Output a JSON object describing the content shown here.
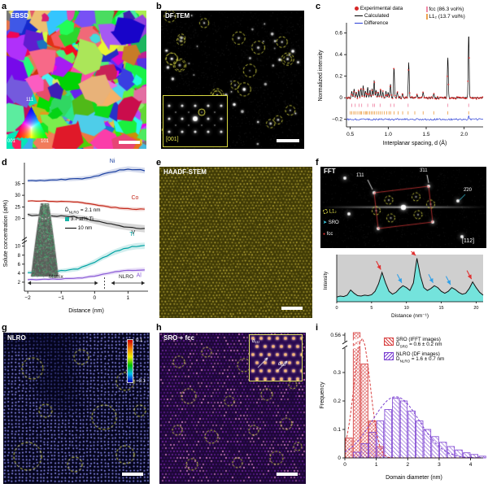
{
  "panels": {
    "a": {
      "letter": "a",
      "tag": "EBSD",
      "ipf_top": "111",
      "ipf_bl": "001",
      "ipf_br": "101"
    },
    "b": {
      "letter": "b",
      "tag": "DF-TEM",
      "zone": "[001]"
    },
    "c": {
      "letter": "c"
    },
    "d": {
      "letter": "d",
      "dbar_sym": "D̄",
      "dbar_sub": "NLRO",
      "dbar_val": " = 2.1 nm",
      "iso_label": "3.7 at% Ti",
      "scale_label": "10 nm",
      "matrix": "Matrix",
      "nlro": "NLRO"
    },
    "e": {
      "letter": "e",
      "tag": "HAADF-STEM"
    },
    "f": {
      "letter": "f",
      "tag": "FFT",
      "spot_111": "1̄11",
      "spot_311": "3̄11",
      "spot_220": "2̄20",
      "legend_l12": "L1₂",
      "legend_sro": "SRO",
      "legend_fcc": "fcc",
      "zone": "[112]"
    },
    "g": {
      "letter": "g",
      "tag": "NLRO",
      "cb_max": "0.1",
      "cb_min": "−0.1"
    },
    "h": {
      "letter": "h",
      "tag": "SRO + fcc",
      "d111_a": "d₁₁₁",
      "d111_b": "d₁₁₁"
    },
    "i": {
      "letter": "i"
    }
  },
  "chart_data": [
    {
      "id": "xrd",
      "type": "line+scatter",
      "title": "",
      "xlabel": "Interplanar spacing, d (Å)",
      "ylabel": "Normalized intensity",
      "xlim": [
        0.45,
        2.25
      ],
      "ylim": [
        -0.27,
        0.68
      ],
      "xticks": [
        0.5,
        1.0,
        1.5,
        2.0
      ],
      "yticks": [
        -0.2,
        0,
        0.2,
        0.4,
        0.6
      ],
      "legend": {
        "exp": "Experimental data",
        "calc": "Calculated",
        "diff": "Difference",
        "fcc": "fcc (86.3 vol%)",
        "l12": "L1₂ (13.7 vol%)"
      },
      "peaks": [
        [
          0.52,
          0.06
        ],
        [
          0.55,
          0.08
        ],
        [
          0.58,
          0.05
        ],
        [
          0.61,
          0.07
        ],
        [
          0.64,
          0.09
        ],
        [
          0.67,
          0.11
        ],
        [
          0.7,
          0.06
        ],
        [
          0.73,
          0.1
        ],
        [
          0.76,
          0.07
        ],
        [
          0.79,
          0.08
        ],
        [
          0.815,
          0.16
        ],
        [
          0.84,
          0.07
        ],
        [
          0.87,
          0.05
        ],
        [
          0.9,
          0.08
        ],
        [
          0.93,
          0.05
        ],
        [
          0.97,
          0.06
        ],
        [
          1.0,
          0.05
        ],
        [
          1.03,
          0.13
        ],
        [
          1.076,
          0.28
        ],
        [
          1.12,
          0.05
        ],
        [
          1.19,
          0.04
        ],
        [
          1.27,
          0.33
        ],
        [
          1.38,
          0.03
        ],
        [
          1.46,
          0.05
        ],
        [
          1.6,
          0.04
        ],
        [
          1.785,
          0.38
        ],
        [
          2.06,
          0.6
        ]
      ],
      "diff_baseline": -0.2,
      "fcc_ticks": [
        0.52,
        0.565,
        0.615,
        0.65,
        0.73,
        0.798,
        0.819,
        0.893,
        1.031,
        1.076,
        1.262,
        1.785,
        2.06
      ],
      "l12_ticks": [
        0.5,
        0.52,
        0.545,
        0.565,
        0.59,
        0.615,
        0.638,
        0.65,
        0.678,
        0.7,
        0.714,
        0.73,
        0.755,
        0.777,
        0.798,
        0.819,
        0.845,
        0.87,
        0.893,
        0.92,
        0.95,
        0.98,
        1.01,
        1.031,
        1.076,
        1.13,
        1.19,
        1.262,
        1.35,
        1.46,
        1.6,
        1.785,
        2.06
      ]
    },
    {
      "id": "proxigram",
      "type": "line",
      "xlabel": "Distance (nm)",
      "ylabel": "Solute concentration (at%)",
      "xlim": [
        -2.1,
        1.6
      ],
      "xticks": [
        -2,
        -1,
        0,
        1
      ],
      "yticks_upper": [
        20,
        25,
        30,
        35
      ],
      "yticks_lower": [
        2,
        4,
        6,
        8,
        10
      ],
      "x": [
        -2,
        -1.75,
        -1.5,
        -1.25,
        -1,
        -0.75,
        -0.5,
        -0.25,
        0,
        0.25,
        0.5,
        0.75,
        1,
        1.25,
        1.5
      ],
      "series": [
        {
          "name": "Ni",
          "color": "#1a3fa0",
          "band": 1.0,
          "values": [
            36.2,
            36.3,
            36.4,
            36.5,
            36.7,
            36.9,
            37.1,
            37.4,
            38.0,
            39.0,
            40.0,
            40.8,
            41.3,
            41.0,
            40.6
          ]
        },
        {
          "name": "Co",
          "color": "#c42a1c",
          "band": 0.7,
          "values": [
            27.6,
            27.5,
            27.5,
            27.4,
            27.3,
            27.2,
            27.0,
            26.6,
            26.0,
            25.4,
            24.9,
            24.5,
            24.2,
            24.0,
            24.1
          ]
        },
        {
          "name": "V",
          "color": "#222222",
          "band": 1.3,
          "values": [
            21.6,
            21.5,
            21.4,
            21.3,
            21.1,
            20.9,
            20.5,
            19.9,
            19.0,
            18.2,
            17.5,
            16.9,
            16.4,
            16.0,
            15.6
          ]
        },
        {
          "name": "Ti",
          "color": "#00a3a3",
          "band": 0.6,
          "values": [
            4.2,
            4.25,
            4.3,
            4.4,
            4.5,
            4.7,
            5.0,
            5.6,
            6.5,
            7.5,
            8.4,
            9.1,
            9.7,
            10.0,
            10.1
          ]
        },
        {
          "name": "Al",
          "color": "#8a5bd6",
          "band": 0.4,
          "values": [
            2.6,
            2.6,
            2.65,
            2.7,
            2.7,
            2.8,
            2.9,
            3.1,
            3.4,
            3.8,
            4.1,
            4.4,
            4.6,
            4.7,
            4.8
          ]
        }
      ]
    },
    {
      "id": "fft_profile",
      "type": "area",
      "xlabel": "Distance (nm⁻¹)",
      "ylabel": "Intensity",
      "xlim": [
        0,
        21
      ],
      "xticks": [
        0,
        5,
        10,
        15,
        20
      ],
      "x0": 0,
      "x_step": 0.5,
      "values": [
        0.1,
        0.12,
        0.11,
        0.14,
        0.25,
        0.18,
        0.13,
        0.12,
        0.14,
        0.13,
        0.15,
        0.22,
        0.38,
        0.62,
        0.4,
        0.22,
        0.16,
        0.2,
        0.28,
        0.34,
        0.3,
        0.24,
        0.4,
        0.92,
        0.55,
        0.3,
        0.24,
        0.28,
        0.34,
        0.3,
        0.22,
        0.18,
        0.22,
        0.3,
        0.26,
        0.2,
        0.16,
        0.18,
        0.28,
        0.42,
        0.3,
        0.2,
        0.14
      ],
      "arrows": [
        {
          "x": 6.5,
          "color": "#e03030"
        },
        {
          "x": 9.5,
          "color": "#30a0e8"
        },
        {
          "x": 11.5,
          "color": "#e03030"
        },
        {
          "x": 14,
          "color": "#30a0e8"
        },
        {
          "x": 16.5,
          "color": "#30a0e8"
        },
        {
          "x": 19.5,
          "color": "#e03030"
        }
      ]
    },
    {
      "id": "histogram",
      "type": "bar",
      "xlabel": "Domain diameter (nm)",
      "ylabel": "Frequency",
      "xticks": [
        0,
        1,
        2,
        3,
        4
      ],
      "yticks": [
        0,
        0.1,
        0.2,
        0.3
      ],
      "break_label": "0.56",
      "bin_width": 0.25,
      "sro": {
        "name": "SRO (IFFT images)",
        "dbar_sym": "D̄",
        "dbar_sub": "SRO",
        "dbar_val": " = 0.6 ± 0.2 nm",
        "color": "#d84040",
        "fit": {
          "amp": 0.42,
          "mu": 0.55,
          "sigma": 0.26
        },
        "bins": [
          [
            0,
            0.07
          ],
          [
            0.25,
            0.56
          ],
          [
            0.5,
            0.33
          ],
          [
            0.75,
            0.13
          ],
          [
            1.0,
            0.04
          ]
        ]
      },
      "nlro": {
        "name": "NLRO (DF images)",
        "dbar_sym": "D̄",
        "dbar_sub": "NLRO",
        "dbar_val": " = 1.6 ± 0.7 nm",
        "color": "#7a3fd1",
        "fit": {
          "amp": 0.215,
          "mu": 1.62,
          "sigma": 0.75
        },
        "bins": [
          [
            0.25,
            0.02
          ],
          [
            0.5,
            0.05
          ],
          [
            0.75,
            0.09
          ],
          [
            1.0,
            0.13
          ],
          [
            1.25,
            0.17
          ],
          [
            1.5,
            0.21
          ],
          [
            1.75,
            0.2
          ],
          [
            2.0,
            0.165
          ],
          [
            2.25,
            0.13
          ],
          [
            2.5,
            0.1
          ],
          [
            2.75,
            0.075
          ],
          [
            3.0,
            0.055
          ],
          [
            3.25,
            0.04
          ],
          [
            3.5,
            0.028
          ],
          [
            3.75,
            0.018
          ],
          [
            4.0,
            0.012
          ],
          [
            4.25,
            0.006
          ]
        ]
      }
    }
  ]
}
